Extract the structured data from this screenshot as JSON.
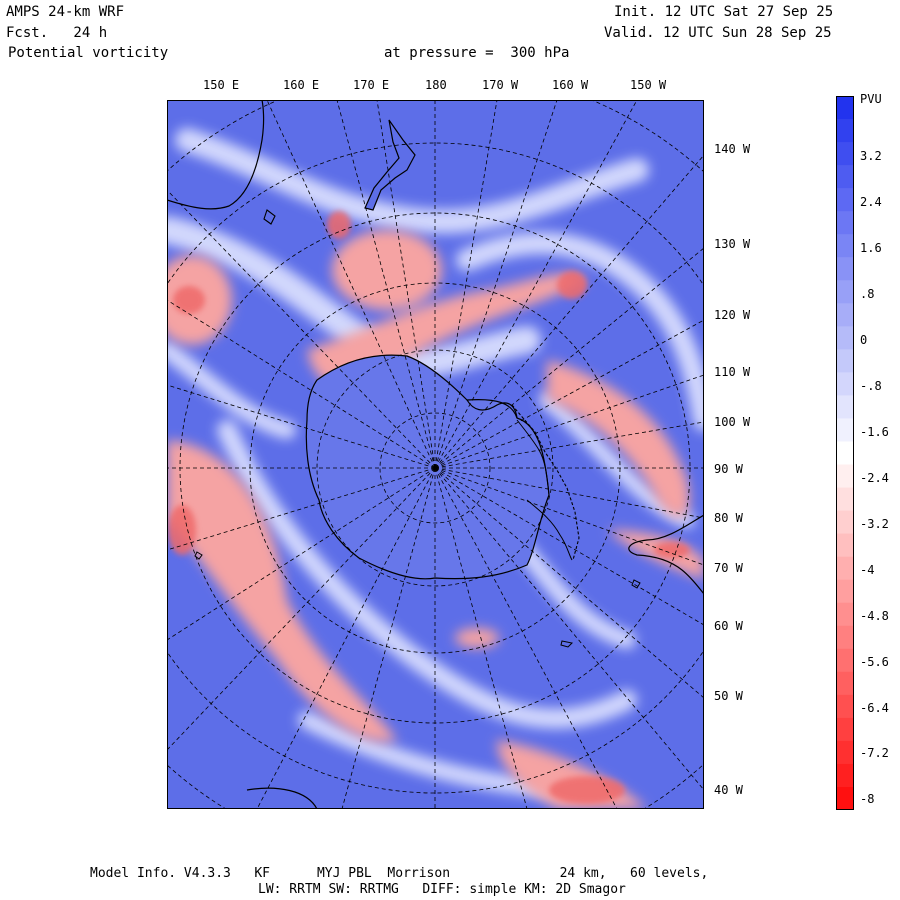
{
  "header": {
    "model": "AMPS 24-km WRF",
    "fcst": "Fcst.   24 h",
    "field": "Potential vorticity",
    "pressure": "at pressure =  300 hPa",
    "init": "Init. 12 UTC Sat 27 Sep 25",
    "valid": "Valid. 12 UTC Sun 28 Sep 25"
  },
  "map": {
    "longitude_labels": [
      "150 E",
      "160 E",
      "170 E",
      "180",
      "170 W",
      "160 W",
      "150 W"
    ],
    "latitude_labels": [
      "140 W",
      "130 W",
      "120 W",
      "110 W",
      "100 W",
      "90 W",
      "80 W",
      "70 W",
      "60 W",
      "50 W",
      "40 W"
    ],
    "colors": {
      "positive": "#3344ee",
      "negative": "#ff2020",
      "coast": "#000000"
    }
  },
  "colorbar": {
    "unit": "PVU",
    "ticks": [
      "3.2",
      "2.4",
      "1.6",
      ".8",
      "0",
      "-.8",
      "-1.6",
      "-2.4",
      "-3.2",
      "-4",
      "-4.8",
      "-5.6",
      "-6.4",
      "-7.2",
      "-8"
    ]
  },
  "footer": {
    "line1": "Model Info. V4.3.3   KF      MYJ PBL  Morrison              24 km,   60 levels,",
    "line2": "LW: RRTM SW: RRTMG   DIFF: simple KM: 2D Smagor"
  }
}
